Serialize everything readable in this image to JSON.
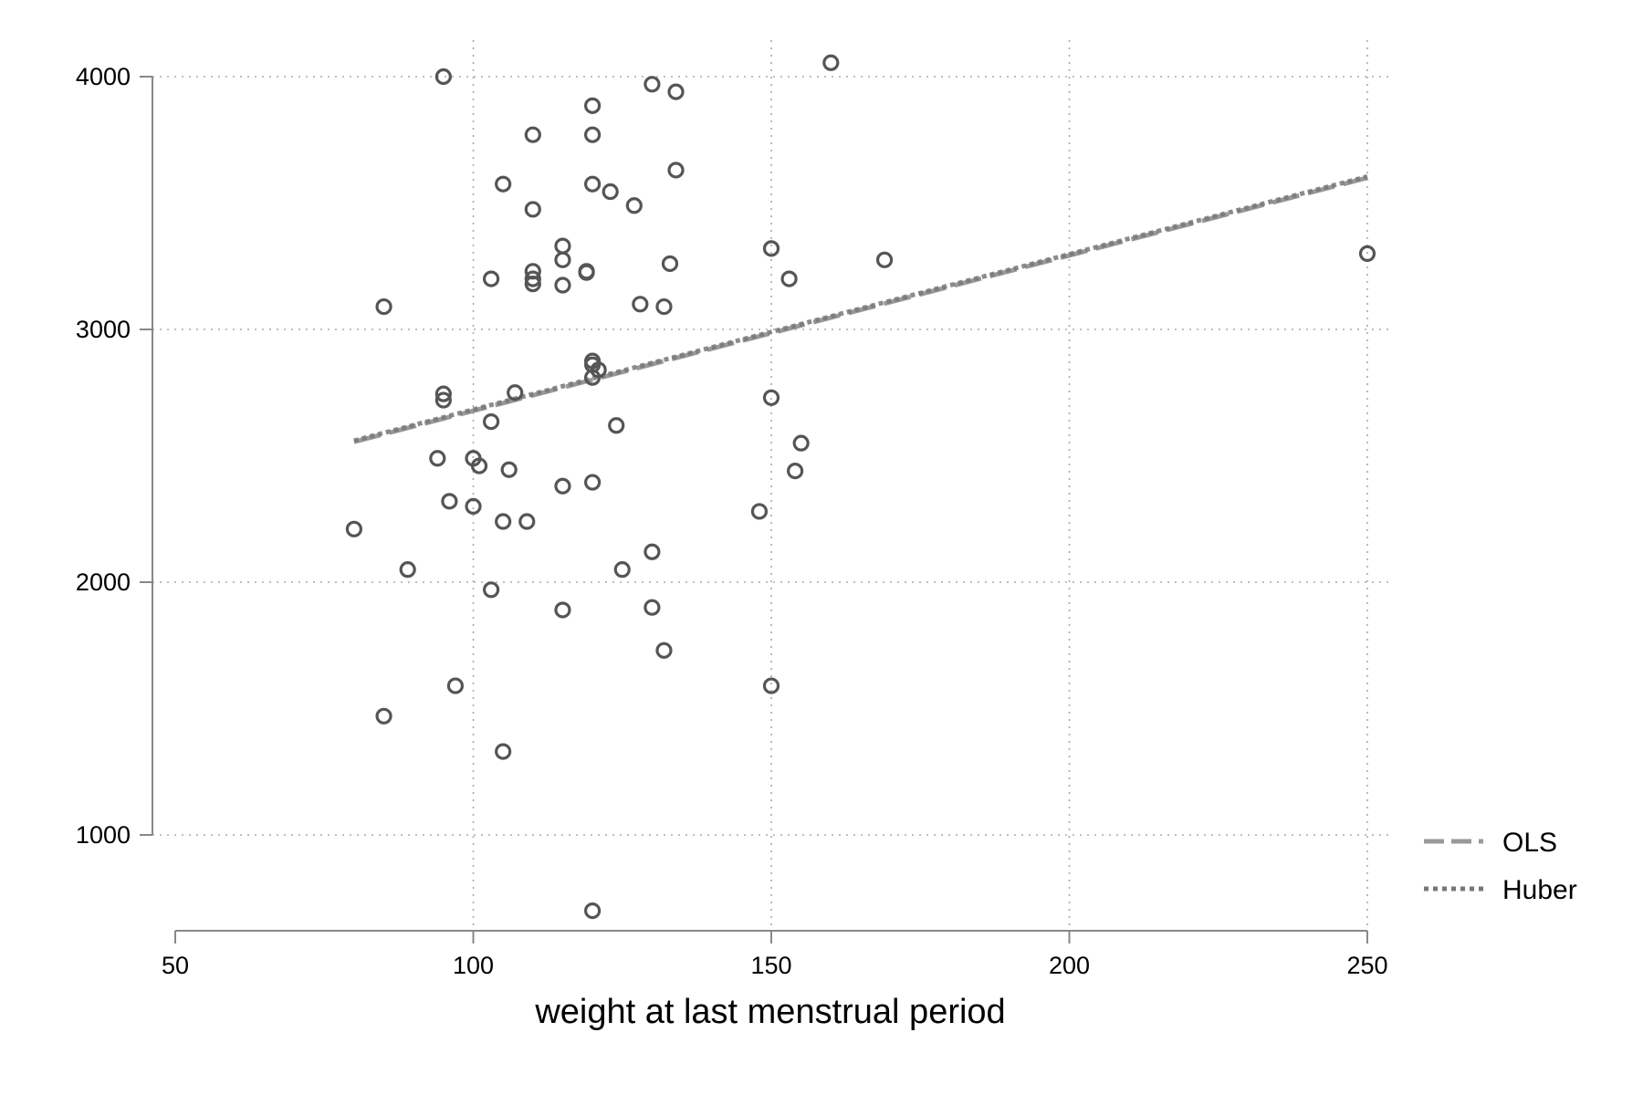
{
  "chart_data": {
    "type": "scatter",
    "title": "",
    "xlabel": "weight at last menstrual period",
    "ylabel": "",
    "xlim": [
      50,
      250
    ],
    "ylim": [
      700,
      4060
    ],
    "xticks": [
      50,
      100,
      150,
      200,
      250
    ],
    "yticks": [
      1000,
      2000,
      3000,
      4000
    ],
    "grid": true,
    "legend_position": "bottom-right",
    "colors": {
      "points": "#555555",
      "ols": "#999999",
      "huber": "#777777",
      "axis": "#888888",
      "grid": "#aaaaaa"
    },
    "points": [
      [
        80,
        2210
      ],
      [
        85,
        3090
      ],
      [
        85,
        1470
      ],
      [
        89,
        2050
      ],
      [
        94,
        2490
      ],
      [
        95,
        4000
      ],
      [
        95,
        2745
      ],
      [
        95,
        2720
      ],
      [
        96,
        2320
      ],
      [
        97,
        1590
      ],
      [
        100,
        2490
      ],
      [
        100,
        2300
      ],
      [
        101,
        2460
      ],
      [
        103,
        3200
      ],
      [
        103,
        2635
      ],
      [
        103,
        1970
      ],
      [
        105,
        3575
      ],
      [
        105,
        2240
      ],
      [
        105,
        1330
      ],
      [
        106,
        2445
      ],
      [
        107,
        2750
      ],
      [
        109,
        2240
      ],
      [
        110,
        3770
      ],
      [
        110,
        3475
      ],
      [
        110,
        3230
      ],
      [
        110,
        3200
      ],
      [
        110,
        3180
      ],
      [
        115,
        3330
      ],
      [
        115,
        3275
      ],
      [
        115,
        3175
      ],
      [
        115,
        2380
      ],
      [
        115,
        1890
      ],
      [
        119,
        3225
      ],
      [
        119,
        3230
      ],
      [
        120,
        3885
      ],
      [
        120,
        3770
      ],
      [
        120,
        3575
      ],
      [
        120,
        2875
      ],
      [
        120,
        2860
      ],
      [
        120,
        2810
      ],
      [
        120,
        2395
      ],
      [
        120,
        700
      ],
      [
        121,
        2840
      ],
      [
        123,
        3545
      ],
      [
        124,
        2620
      ],
      [
        125,
        2050
      ],
      [
        127,
        3490
      ],
      [
        128,
        3100
      ],
      [
        130,
        3970
      ],
      [
        130,
        2120
      ],
      [
        130,
        1900
      ],
      [
        132,
        3090
      ],
      [
        132,
        1730
      ],
      [
        133,
        3260
      ],
      [
        134,
        3940
      ],
      [
        134,
        3630
      ],
      [
        148,
        2280
      ],
      [
        150,
        3320
      ],
      [
        150,
        2730
      ],
      [
        150,
        1590
      ],
      [
        153,
        3200
      ],
      [
        154,
        2440
      ],
      [
        155,
        2550
      ],
      [
        160,
        4055
      ],
      [
        169,
        3275
      ],
      [
        250,
        3300
      ]
    ],
    "series": [
      {
        "name": "OLS",
        "style": "dashed",
        "x": [
          80,
          250
        ],
        "y": [
          2555,
          3600
        ]
      },
      {
        "name": "Huber",
        "style": "dotted",
        "x": [
          80,
          250
        ],
        "y": [
          2560,
          3605
        ]
      }
    ]
  }
}
